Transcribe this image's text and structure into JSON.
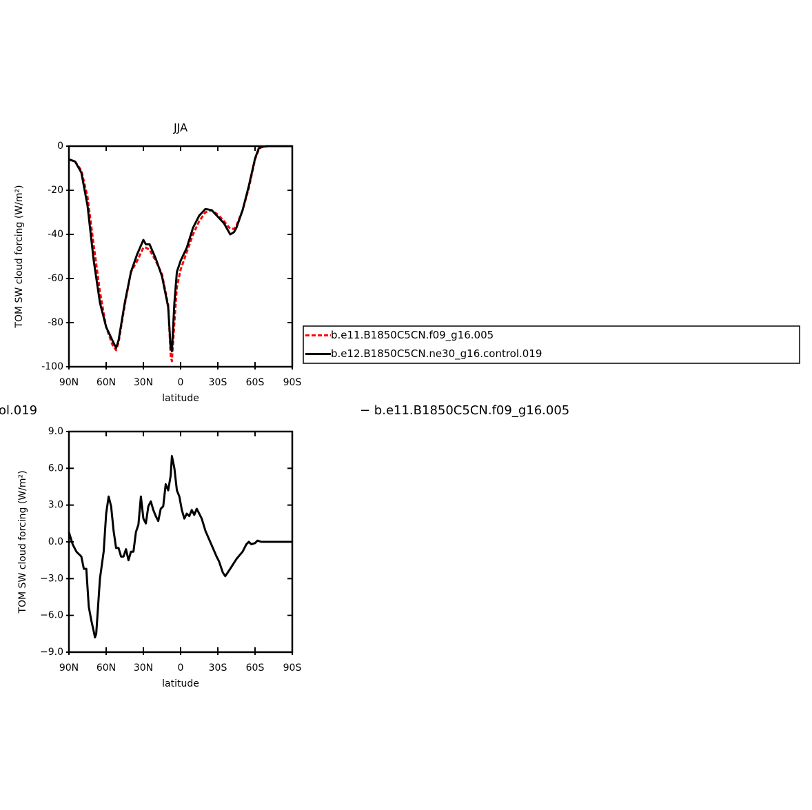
{
  "chart_data": [
    {
      "type": "line",
      "title": "JJA",
      "xlabel": "latitude",
      "ylabel": "TOM SW cloud forcing (W/m²)",
      "xlim": [
        90,
        -90
      ],
      "xticks": [
        {
          "value": 90,
          "label": "90N"
        },
        {
          "value": 60,
          "label": "60N"
        },
        {
          "value": 30,
          "label": "30N"
        },
        0,
        {
          "value": -30,
          "label": "30S"
        },
        {
          "value": -60,
          "label": "60S"
        },
        {
          "value": -90,
          "label": "90S"
        }
      ],
      "ylim": [
        -100,
        0
      ],
      "yticks": [
        -100,
        -80,
        -60,
        -40,
        -20,
        0
      ],
      "legend": "right",
      "x": [
        90,
        85,
        80,
        75,
        70,
        65,
        60,
        55,
        52,
        50,
        45,
        40,
        35,
        30,
        28,
        25,
        20,
        15,
        10,
        8,
        7,
        5,
        3,
        0,
        -5,
        -10,
        -15,
        -20,
        -25,
        -30,
        -35,
        -40,
        -43,
        -45,
        -50,
        -55,
        -60,
        -63,
        -65,
        -70,
        -90
      ],
      "series": [
        {
          "name": "b.e11.B1850C5CN.f09_g16.005",
          "color": "#ff0000",
          "dash": "dashed",
          "values": [
            -6,
            -7,
            -11,
            -23,
            -45,
            -66,
            -82,
            -90,
            -92.5,
            -89,
            -72,
            -57,
            -52,
            -46,
            -46,
            -47,
            -52,
            -58,
            -72,
            -95,
            -97.5,
            -80,
            -64,
            -56,
            -48,
            -40,
            -34,
            -30,
            -29,
            -31,
            -34,
            -37.5,
            -37.5,
            -36,
            -29,
            -19,
            -6,
            -1.5,
            -0.5,
            0,
            0
          ]
        },
        {
          "name": "b.e12.B1850C5CN.ne30_g16.control.019",
          "color": "#000000",
          "dash": "solid",
          "values": [
            -6,
            -7,
            -12,
            -27,
            -52,
            -71,
            -82,
            -88,
            -91.5,
            -88,
            -71,
            -57,
            -49,
            -42.5,
            -44.5,
            -44.5,
            -51,
            -59,
            -73,
            -91.5,
            -93,
            -71,
            -57,
            -52,
            -46,
            -37,
            -31.5,
            -28.5,
            -29,
            -32,
            -35,
            -40,
            -39,
            -37,
            -29,
            -18,
            -5.6,
            -1,
            -0.3,
            0,
            0
          ]
        }
      ]
    },
    {
      "type": "line",
      "title_left": "ol.019",
      "title_right": "− b.e11.B1850C5CN.f09_g16.005",
      "xlabel": "latitude",
      "ylabel": "TOM SW cloud forcing (W/m²)",
      "xlim": [
        90,
        -90
      ],
      "xticks": [
        {
          "value": 90,
          "label": "90N"
        },
        {
          "value": 60,
          "label": "60N"
        },
        {
          "value": 30,
          "label": "30N"
        },
        0,
        {
          "value": -30,
          "label": "30S"
        },
        {
          "value": -60,
          "label": "60S"
        },
        {
          "value": -90,
          "label": "90S"
        }
      ],
      "ylim": [
        -9,
        9
      ],
      "yticks": [
        {
          "value": -9,
          "label": "−9.0"
        },
        {
          "value": -6,
          "label": "−6.0"
        },
        {
          "value": -3,
          "label": "−3.0"
        },
        {
          "value": 0,
          "label": "0.0"
        },
        {
          "value": 3,
          "label": "3.0"
        },
        {
          "value": 6,
          "label": "6.0"
        },
        {
          "value": 9,
          "label": "9.0"
        }
      ],
      "x": [
        90,
        87,
        84,
        82,
        80,
        78,
        76,
        74,
        72,
        70,
        69,
        68,
        65,
        62,
        60,
        58,
        56,
        54,
        52,
        50,
        48,
        46,
        44,
        42,
        40,
        38,
        36,
        34,
        32,
        30,
        28,
        26,
        24,
        22,
        20,
        18,
        16,
        14,
        12,
        10,
        8,
        7,
        5,
        3,
        1,
        -1,
        -3,
        -5,
        -7,
        -9,
        -11,
        -13,
        -15,
        -17,
        -20,
        -23,
        -26,
        -29,
        -31,
        -34,
        -36,
        -40,
        -45,
        -50,
        -53,
        -55,
        -57,
        -60,
        -62,
        -65,
        -90
      ],
      "series": [
        {
          "color": "#000000",
          "dash": "solid",
          "values": [
            0.8,
            -0.2,
            -0.8,
            -1.0,
            -1.2,
            -2.2,
            -2.2,
            -5.3,
            -6.4,
            -7.3,
            -7.8,
            -7.5,
            -3.0,
            -0.8,
            2.3,
            3.7,
            2.9,
            0.9,
            -0.5,
            -0.5,
            -1.2,
            -1.2,
            -0.6,
            -1.5,
            -0.8,
            -0.8,
            0.8,
            1.4,
            3.7,
            1.9,
            1.5,
            2.9,
            3.3,
            2.6,
            2.1,
            1.7,
            2.7,
            2.9,
            4.7,
            4.2,
            5.4,
            7.0,
            6.0,
            4.2,
            3.7,
            2.6,
            1.9,
            2.3,
            2.1,
            2.6,
            2.2,
            2.7,
            2.3,
            1.9,
            0.9,
            0.2,
            -0.5,
            -1.2,
            -1.6,
            -2.5,
            -2.8,
            -2.2,
            -1.4,
            -0.8,
            -0.2,
            0.0,
            -0.2,
            -0.1,
            0.1,
            0.0,
            0.0
          ]
        }
      ]
    }
  ]
}
